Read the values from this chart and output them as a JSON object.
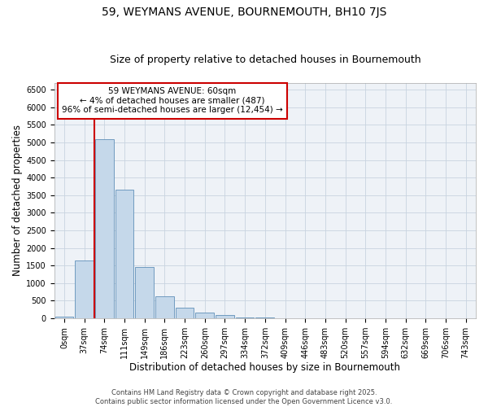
{
  "title": "59, WEYMANS AVENUE, BOURNEMOUTH, BH10 7JS",
  "subtitle": "Size of property relative to detached houses in Bournemouth",
  "xlabel": "Distribution of detached houses by size in Bournemouth",
  "ylabel": "Number of detached properties",
  "categories": [
    "0sqm",
    "37sqm",
    "74sqm",
    "111sqm",
    "149sqm",
    "186sqm",
    "223sqm",
    "260sqm",
    "297sqm",
    "334sqm",
    "372sqm",
    "409sqm",
    "446sqm",
    "483sqm",
    "520sqm",
    "557sqm",
    "594sqm",
    "632sqm",
    "669sqm",
    "706sqm",
    "743sqm"
  ],
  "values": [
    50,
    1650,
    5100,
    3650,
    1450,
    620,
    310,
    155,
    100,
    35,
    15,
    8,
    3,
    1,
    0,
    0,
    0,
    0,
    0,
    0,
    0
  ],
  "bar_color": "#c5d8ea",
  "bar_edge_color": "#6090b8",
  "vline_x": 1.5,
  "vline_color": "#cc0000",
  "annotation_text": "59 WEYMANS AVENUE: 60sqm\n← 4% of detached houses are smaller (487)\n96% of semi-detached houses are larger (12,454) →",
  "annotation_box_color": "#ffffff",
  "annotation_box_edge": "#cc0000",
  "ylim": [
    0,
    6700
  ],
  "yticks": [
    0,
    500,
    1000,
    1500,
    2000,
    2500,
    3000,
    3500,
    4000,
    4500,
    5000,
    5500,
    6000,
    6500
  ],
  "grid_color": "#c8d4e0",
  "bg_color": "#eef2f7",
  "footer_text": "Contains HM Land Registry data © Crown copyright and database right 2025.\nContains public sector information licensed under the Open Government Licence v3.0.",
  "title_fontsize": 10,
  "subtitle_fontsize": 9,
  "axis_label_fontsize": 8.5,
  "tick_fontsize": 7,
  "annotation_fontsize": 7.5,
  "footer_fontsize": 6
}
